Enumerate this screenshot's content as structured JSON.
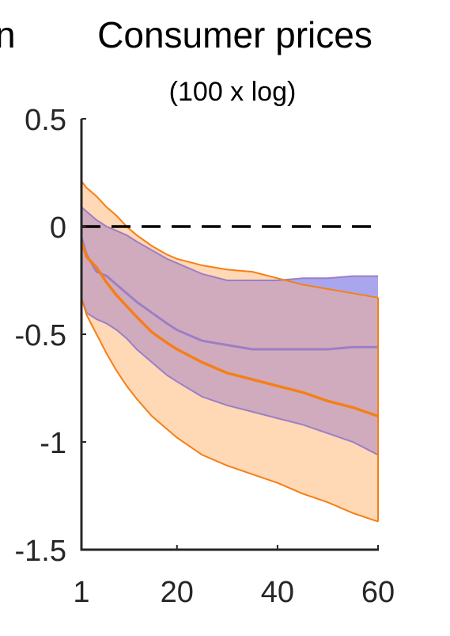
{
  "clipped_prev_title": "n",
  "title": "Consumer prices",
  "subtitle": "(100 x log)",
  "chart_data": {
    "type": "area",
    "title": "Consumer prices",
    "subtitle": "(100 x log)",
    "xlim": [
      1,
      60
    ],
    "ylim": [
      -1.5,
      0.5
    ],
    "x_ticks": [
      1,
      20,
      40,
      60
    ],
    "x_tick_labels": [
      "1",
      "20",
      "40",
      "60"
    ],
    "y_ticks": [
      0.5,
      0,
      -0.5,
      -1,
      -1.5
    ],
    "y_tick_labels": [
      "0.5",
      "0",
      "-0.5",
      "-1",
      "-1.5"
    ],
    "reference_line": {
      "y": 0,
      "style": "dashed",
      "color": "#000000"
    },
    "grid": false,
    "legend": "none",
    "colors": {
      "orange_line": "#f57f17",
      "orange_fill": "#ffd8b5",
      "purple_line": "#9b7fc6",
      "blue_fill": "#aaa6ee",
      "overlap_fill": "#d0abbd"
    },
    "series": [
      {
        "color": "orange",
        "x": [
          1,
          2,
          4,
          6,
          8,
          10,
          12,
          15,
          18,
          20,
          25,
          30,
          35,
          40,
          45,
          50,
          55,
          60
        ],
        "median": [
          -0.07,
          -0.14,
          -0.19,
          -0.26,
          -0.32,
          -0.37,
          -0.42,
          -0.49,
          -0.54,
          -0.57,
          -0.63,
          -0.68,
          -0.71,
          -0.74,
          -0.77,
          -0.81,
          -0.84,
          -0.88
        ],
        "upper": [
          0.21,
          0.18,
          0.14,
          0.09,
          0.05,
          0.0,
          -0.04,
          -0.09,
          -0.13,
          -0.15,
          -0.18,
          -0.2,
          -0.21,
          -0.24,
          -0.27,
          -0.29,
          -0.31,
          -0.33
        ],
        "lower": [
          -0.33,
          -0.41,
          -0.5,
          -0.59,
          -0.67,
          -0.74,
          -0.8,
          -0.88,
          -0.94,
          -0.98,
          -1.06,
          -1.11,
          -1.15,
          -1.19,
          -1.24,
          -1.28,
          -1.33,
          -1.37
        ]
      },
      {
        "color": "purple",
        "x": [
          1,
          2,
          4,
          6,
          8,
          10,
          12,
          15,
          18,
          20,
          25,
          30,
          35,
          40,
          45,
          50,
          55,
          60
        ],
        "median": [
          -0.05,
          -0.13,
          -0.21,
          -0.23,
          -0.27,
          -0.31,
          -0.35,
          -0.4,
          -0.45,
          -0.48,
          -0.53,
          -0.55,
          -0.57,
          -0.57,
          -0.57,
          -0.57,
          -0.56,
          -0.56
        ],
        "upper": [
          0.09,
          0.07,
          0.03,
          0.0,
          -0.02,
          -0.04,
          -0.07,
          -0.11,
          -0.15,
          -0.17,
          -0.22,
          -0.25,
          -0.25,
          -0.25,
          -0.24,
          -0.24,
          -0.23,
          -0.23
        ],
        "lower": [
          -0.33,
          -0.4,
          -0.43,
          -0.45,
          -0.48,
          -0.52,
          -0.57,
          -0.63,
          -0.69,
          -0.72,
          -0.79,
          -0.83,
          -0.86,
          -0.89,
          -0.92,
          -0.96,
          -1.0,
          -1.06
        ]
      }
    ]
  }
}
